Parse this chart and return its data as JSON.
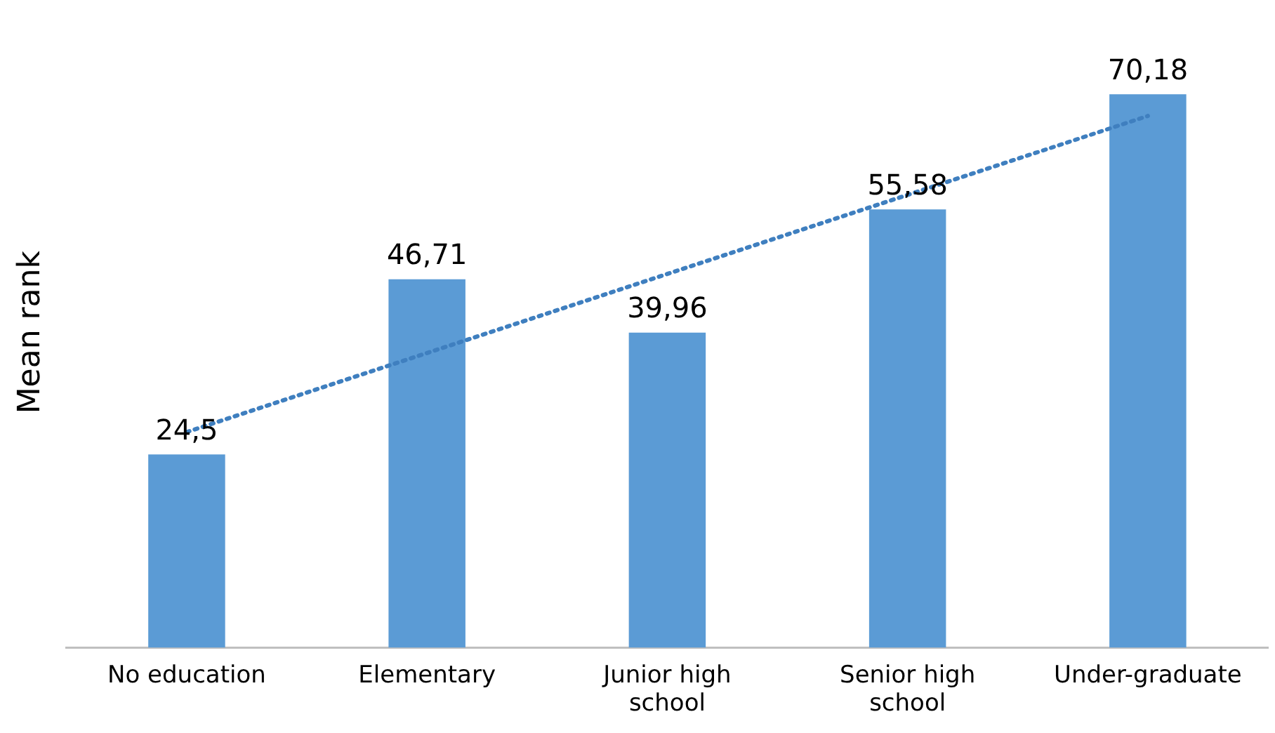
{
  "chart_data": {
    "type": "bar",
    "ylabel": "Mean rank",
    "categories": [
      "No education",
      "Elementary",
      "Junior high school",
      "Senior high school",
      "Under-graduate"
    ],
    "series": [
      {
        "color": "#5b9bd5",
        "values": [
          24.5,
          46.71,
          39.96,
          55.58,
          70.18
        ],
        "value_labels": [
          "24,5",
          "46,71",
          "39,96",
          "55,58",
          "70,18"
        ]
      },
      {
        "type": "line",
        "color": "#3f7fbf",
        "values": [
          27.34,
          37.36,
          47.39,
          57.41,
          67.43
        ],
        "line_style": "dotted",
        "marker": "none"
      }
    ],
    "tick_labels": "x",
    "grid": false,
    "legend": false
  }
}
